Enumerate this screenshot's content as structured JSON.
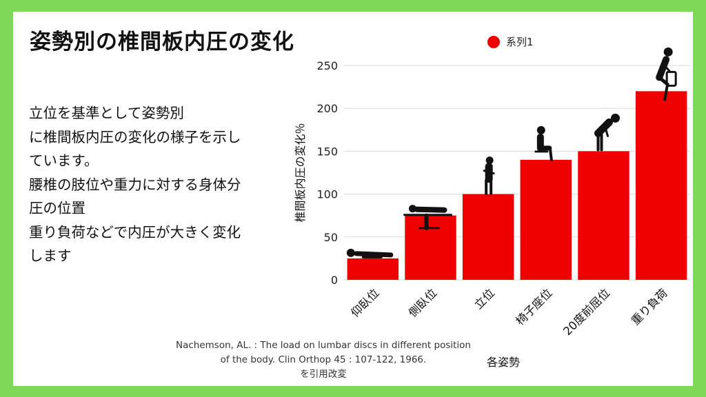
{
  "slide": {
    "title": "姿勢別の椎間板内圧の変化",
    "description_lines": [
      "立位を基準として姿勢別",
      "に椎間板内圧の変化の様子を示し",
      "ています。",
      "腰椎の肢位や重力に対する身体分",
      "圧の位置",
      "重り負荷などで内圧が大きく変化",
      "します"
    ],
    "citation_lines": [
      "Nachemson, AL. : The load on lumbar discs in different position",
      "of the body. Clin Orthop 45 : 107-122, 1966.",
      "を引用改変"
    ]
  },
  "colors": {
    "frame": "#7ed957",
    "bar": "#ee0000",
    "icon": "#111111"
  },
  "chart_data": {
    "type": "bar",
    "categories": [
      "仰臥位",
      "側臥位",
      "立位",
      "椅子座位",
      "20度前屈位",
      "重り負荷"
    ],
    "series": [
      {
        "name": "系列1",
        "values": [
          25,
          75,
          100,
          140,
          150,
          220
        ]
      }
    ],
    "xlabel": "各姿勢",
    "ylabel": "椎間板内圧の変化％",
    "ylim": [
      0,
      250
    ],
    "yticks": [
      0,
      50,
      100,
      150,
      200,
      250
    ],
    "grid": true,
    "legend": "top",
    "posture_icons": [
      "lying-supine-icon",
      "lying-side-icon",
      "standing-icon",
      "sitting-icon",
      "bending-forward-icon",
      "lifting-weight-icon"
    ]
  }
}
